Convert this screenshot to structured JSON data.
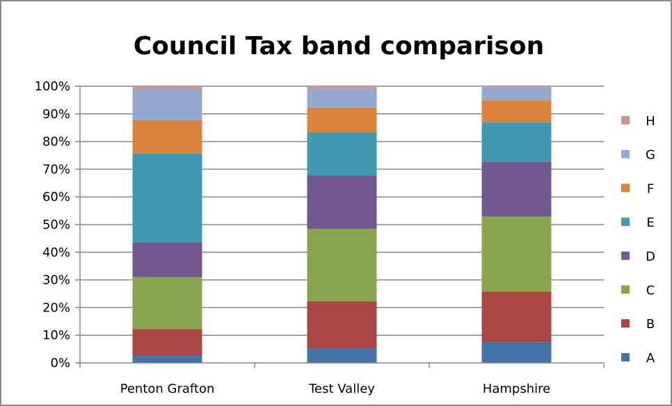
{
  "chart_data": {
    "type": "bar",
    "stacked": true,
    "title": "Council Tax band comparison",
    "categories": [
      "Penton Grafton",
      "Test Valley",
      "Hampshire"
    ],
    "ylim": [
      0,
      100
    ],
    "y_ticks": [
      "0%",
      "10%",
      "20%",
      "30%",
      "40%",
      "50%",
      "60%",
      "70%",
      "80%",
      "90%",
      "100%"
    ],
    "grid": true,
    "legend_position": "right",
    "series": [
      {
        "name": "A",
        "color": "#4572A7",
        "values": [
          2.5,
          5.3,
          7.5
        ]
      },
      {
        "name": "B",
        "color": "#AA4643",
        "values": [
          9.7,
          17.0,
          18.3
        ]
      },
      {
        "name": "C",
        "color": "#89A54E",
        "values": [
          18.8,
          26.2,
          27.1
        ]
      },
      {
        "name": "D",
        "color": "#71588F",
        "values": [
          12.5,
          19.3,
          19.8
        ]
      },
      {
        "name": "E",
        "color": "#4198AF",
        "values": [
          32.2,
          15.5,
          14.2
        ]
      },
      {
        "name": "F",
        "color": "#DB843D",
        "values": [
          12.0,
          9.0,
          8.0
        ]
      },
      {
        "name": "G",
        "color": "#93A9CF",
        "values": [
          11.3,
          7.0,
          4.8
        ]
      },
      {
        "name": "H",
        "color": "#D19392",
        "values": [
          1.0,
          0.7,
          0.3
        ]
      }
    ]
  }
}
